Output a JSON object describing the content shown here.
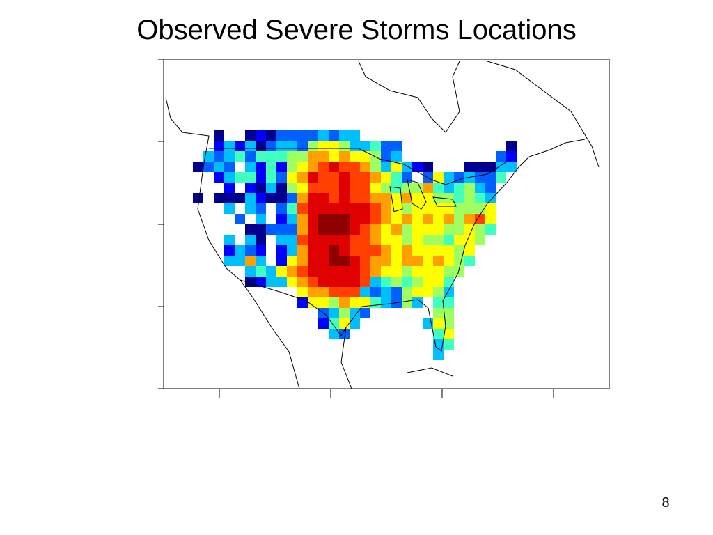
{
  "title": "Observed Severe Storms Locations",
  "page_number": "8",
  "map": {
    "palette": [
      "#00008f",
      "#0000ff",
      "#0060ff",
      "#00bfff",
      "#40ffbf",
      "#9fff60",
      "#ffff00",
      "#ffa000",
      "#ff4000",
      "#df0000",
      "#8f0000"
    ],
    "cells": [
      [
        null,
        null,
        0,
        null,
        null,
        0,
        1,
        0,
        2,
        2,
        2,
        2,
        3,
        2,
        3,
        3,
        null,
        null,
        null,
        null,
        null,
        null,
        null,
        null,
        null,
        null,
        null,
        null,
        null,
        null,
        null
      ],
      [
        null,
        null,
        1,
        3,
        1,
        3,
        0,
        2,
        3,
        3,
        2,
        5,
        6,
        6,
        5,
        3,
        3,
        4,
        2,
        2,
        null,
        null,
        null,
        null,
        null,
        null,
        null,
        null,
        null,
        null,
        0
      ],
      [
        null,
        3,
        2,
        3,
        4,
        2,
        4,
        4,
        4,
        5,
        5,
        7,
        7,
        6,
        7,
        6,
        6,
        5,
        2,
        3,
        null,
        null,
        null,
        null,
        null,
        null,
        null,
        null,
        null,
        2,
        1
      ],
      [
        0,
        2,
        3,
        2,
        null,
        3,
        1,
        4,
        1,
        5,
        6,
        7,
        8,
        9,
        8,
        8,
        7,
        5,
        3,
        6,
        3,
        1,
        0,
        null,
        null,
        null,
        0,
        0,
        0,
        3,
        3
      ],
      [
        null,
        null,
        1,
        3,
        4,
        4,
        1,
        4,
        2,
        6,
        7,
        9,
        8,
        8,
        9,
        8,
        8,
        7,
        6,
        4,
        2,
        null,
        2,
        6,
        3,
        2,
        3,
        2,
        2,
        4,
        null
      ],
      [
        null,
        null,
        null,
        1,
        null,
        1,
        0,
        3,
        0,
        5,
        6,
        8,
        8,
        8,
        9,
        8,
        8,
        6,
        5,
        4,
        5,
        5,
        7,
        4,
        3,
        4,
        5,
        3,
        2,
        null,
        null
      ],
      [
        0,
        null,
        0,
        0,
        0,
        3,
        1,
        0,
        0,
        2,
        7,
        9,
        9,
        8,
        9,
        8,
        8,
        7,
        7,
        6,
        7,
        6,
        6,
        5,
        5,
        4,
        5,
        4,
        3,
        null,
        null
      ],
      [
        null,
        null,
        null,
        3,
        null,
        3,
        2,
        null,
        2,
        4,
        8,
        9,
        9,
        9,
        9,
        9,
        9,
        8,
        7,
        6,
        5,
        6,
        6,
        6,
        6,
        5,
        5,
        5,
        6,
        null,
        null
      ],
      [
        null,
        null,
        null,
        null,
        2,
        null,
        3,
        null,
        1,
        3,
        7,
        9,
        10,
        10,
        10,
        9,
        9,
        8,
        7,
        6,
        7,
        6,
        7,
        6,
        7,
        5,
        7,
        8,
        6,
        null,
        null
      ],
      [
        null,
        null,
        null,
        null,
        null,
        0,
        0,
        2,
        2,
        2,
        7,
        9,
        10,
        10,
        10,
        9,
        8,
        7,
        6,
        7,
        5,
        6,
        6,
        6,
        5,
        5,
        6,
        5,
        4,
        null,
        null
      ],
      [
        null,
        null,
        null,
        3,
        null,
        3,
        0,
        null,
        3,
        3,
        8,
        9,
        9,
        9,
        9,
        8,
        8,
        7,
        6,
        6,
        5,
        6,
        5,
        5,
        4,
        6,
        6,
        5,
        null,
        null,
        null
      ],
      [
        null,
        null,
        null,
        1,
        3,
        2,
        1,
        null,
        1,
        3,
        7,
        9,
        9,
        10,
        9,
        8,
        8,
        8,
        7,
        6,
        7,
        6,
        6,
        6,
        6,
        5,
        6,
        null,
        null,
        null,
        null
      ],
      [
        null,
        null,
        null,
        3,
        3,
        7,
        3,
        null,
        1,
        6,
        7,
        9,
        9,
        10,
        10,
        9,
        8,
        7,
        7,
        6,
        7,
        7,
        6,
        7,
        6,
        5,
        4,
        null,
        null,
        null,
        null
      ],
      [
        null,
        null,
        null,
        null,
        null,
        3,
        4,
        3,
        6,
        7,
        8,
        9,
        9,
        9,
        9,
        9,
        8,
        7,
        6,
        6,
        5,
        6,
        6,
        6,
        5,
        5,
        null,
        null,
        null,
        null,
        null
      ],
      [
        null,
        null,
        null,
        null,
        null,
        0,
        1,
        3,
        3,
        6,
        7,
        8,
        9,
        9,
        9,
        9,
        8,
        3,
        4,
        5,
        4,
        5,
        6,
        6,
        4,
        null,
        null,
        null,
        null,
        null,
        null
      ],
      [
        null,
        null,
        null,
        null,
        null,
        null,
        null,
        null,
        null,
        null,
        6,
        7,
        7,
        8,
        8,
        8,
        3,
        2,
        3,
        2,
        5,
        6,
        6,
        5,
        3,
        null,
        null,
        null,
        null,
        null,
        null
      ],
      [
        null,
        null,
        null,
        null,
        null,
        null,
        null,
        null,
        null,
        null,
        1,
        6,
        6,
        5,
        7,
        6,
        6,
        4,
        3,
        2,
        5,
        3,
        null,
        4,
        4,
        null,
        null,
        null,
        null,
        null,
        null
      ],
      [
        null,
        null,
        null,
        null,
        null,
        null,
        null,
        null,
        null,
        null,
        null,
        null,
        2,
        3,
        5,
        3,
        2,
        null,
        null,
        null,
        null,
        null,
        null,
        5,
        5,
        null,
        null,
        null,
        null,
        null,
        null
      ],
      [
        null,
        null,
        null,
        null,
        null,
        null,
        null,
        null,
        null,
        null,
        null,
        null,
        1,
        4,
        6,
        3,
        null,
        null,
        null,
        null,
        null,
        null,
        3,
        6,
        5,
        null,
        null,
        null,
        null,
        null,
        null
      ],
      [
        null,
        null,
        null,
        null,
        null,
        null,
        null,
        null,
        null,
        null,
        null,
        null,
        null,
        3,
        2,
        null,
        null,
        null,
        null,
        null,
        null,
        null,
        null,
        4,
        6,
        null,
        null,
        null,
        null,
        null,
        null
      ],
      [
        null,
        null,
        null,
        null,
        null,
        null,
        null,
        null,
        null,
        null,
        null,
        null,
        null,
        null,
        null,
        null,
        null,
        null,
        null,
        null,
        null,
        null,
        null,
        3,
        4,
        null,
        null,
        null,
        null,
        null,
        null
      ],
      [
        null,
        null,
        null,
        null,
        null,
        null,
        null,
        null,
        null,
        null,
        null,
        null,
        null,
        null,
        null,
        null,
        null,
        null,
        null,
        null,
        null,
        null,
        null,
        3,
        null,
        null,
        null,
        null,
        null,
        null,
        null
      ]
    ]
  }
}
